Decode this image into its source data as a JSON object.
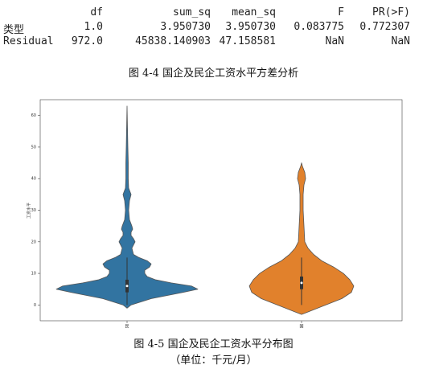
{
  "table": {
    "columns": [
      "df",
      "sum_sq",
      "mean_sq",
      "F",
      "PR(>F)"
    ],
    "rows": [
      [
        "类型",
        "1.0",
        "3.950730",
        "3.950730",
        "0.083775",
        "0.772307"
      ],
      [
        "Residual",
        "972.0",
        "45838.140903",
        "47.158581",
        "NaN",
        "NaN"
      ]
    ]
  },
  "caption_table": "图 4-4  国企及民企工资水平方差分析",
  "figure": {
    "ylabel": "工资水平",
    "categories": [
      "民",
      "国"
    ],
    "ylim": [
      -5,
      65
    ],
    "yticks": [
      0,
      10,
      20,
      30,
      40,
      50,
      60
    ]
  },
  "caption_figure": "图 4-5  国企及民企工资水平分布图",
  "caption_unit": "（单位：千元/月）"
}
